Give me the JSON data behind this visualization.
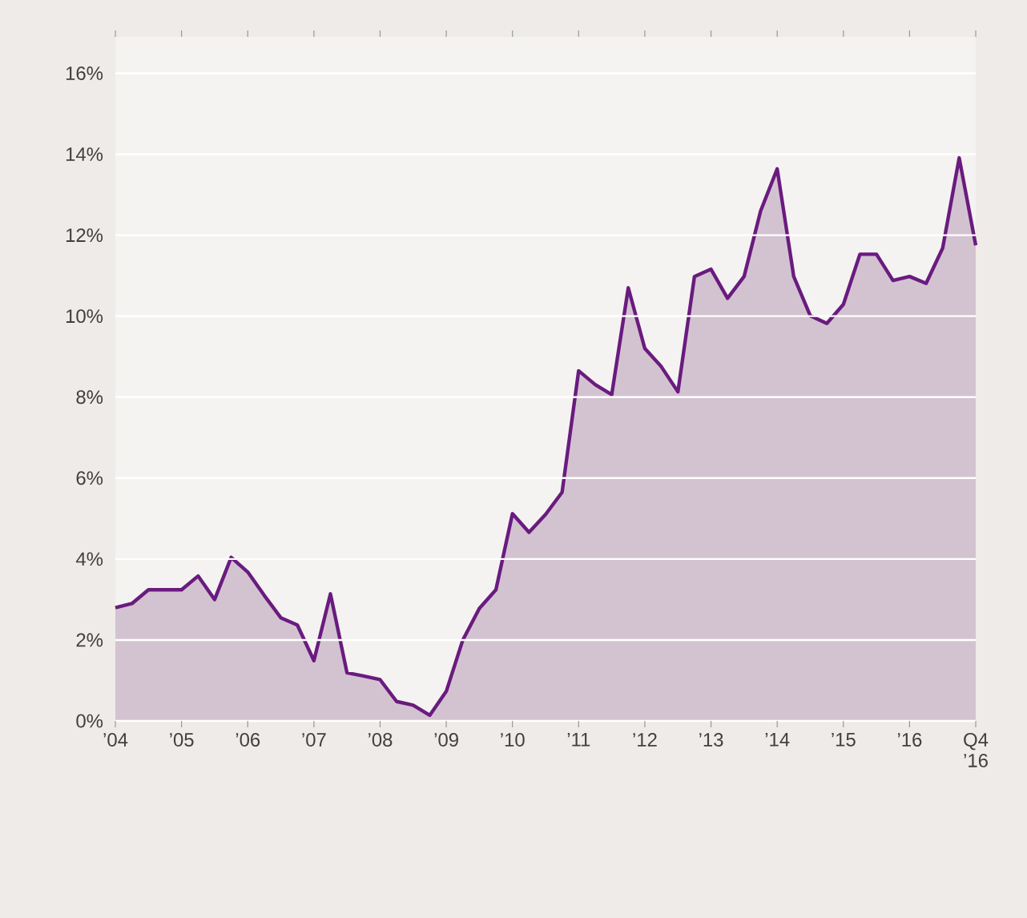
{
  "chart_data": {
    "type": "area",
    "categories": [
      "’04",
      null,
      null,
      null,
      "’05",
      null,
      null,
      null,
      "’06",
      null,
      null,
      null,
      "’07",
      null,
      null,
      null,
      "’08",
      null,
      null,
      null,
      "’09",
      null,
      null,
      null,
      "’10",
      null,
      null,
      null,
      "’11",
      null,
      null,
      null,
      "’12",
      null,
      null,
      null,
      "’13",
      null,
      null,
      null,
      "’14",
      null,
      null,
      null,
      "’15",
      null,
      null,
      null,
      "’16",
      null,
      null,
      null,
      "Q4 ’16"
    ],
    "values": [
      2.8,
      2.9,
      3.24,
      3.24,
      3.24,
      3.58,
      3.0,
      4.04,
      3.68,
      3.1,
      2.55,
      2.37,
      1.49,
      3.14,
      1.19,
      1.11,
      1.02,
      0.48,
      0.39,
      0.14,
      0.73,
      2.0,
      2.78,
      3.24,
      5.12,
      4.66,
      5.1,
      5.65,
      8.65,
      8.31,
      8.06,
      10.7,
      9.2,
      8.75,
      8.13,
      10.98,
      11.16,
      10.44,
      10.98,
      12.6,
      13.64,
      10.98,
      10.01,
      9.82,
      10.29,
      11.53,
      11.53,
      10.88,
      10.98,
      10.81,
      11.68,
      13.91,
      11.75
    ],
    "color": "#6a1b7f",
    "ylim": [
      0,
      16.9
    ],
    "yticks": [
      {
        "value": 0,
        "label": "0%"
      },
      {
        "value": 2,
        "label": "2%"
      },
      {
        "value": 4,
        "label": "4%"
      },
      {
        "value": 6,
        "label": "6%"
      },
      {
        "value": 8,
        "label": "8%"
      },
      {
        "value": 10,
        "label": "10%"
      },
      {
        "value": 12,
        "label": "12%"
      },
      {
        "value": 14,
        "label": "14%"
      },
      {
        "value": 16,
        "label": "16%"
      }
    ],
    "grid": "y"
  }
}
